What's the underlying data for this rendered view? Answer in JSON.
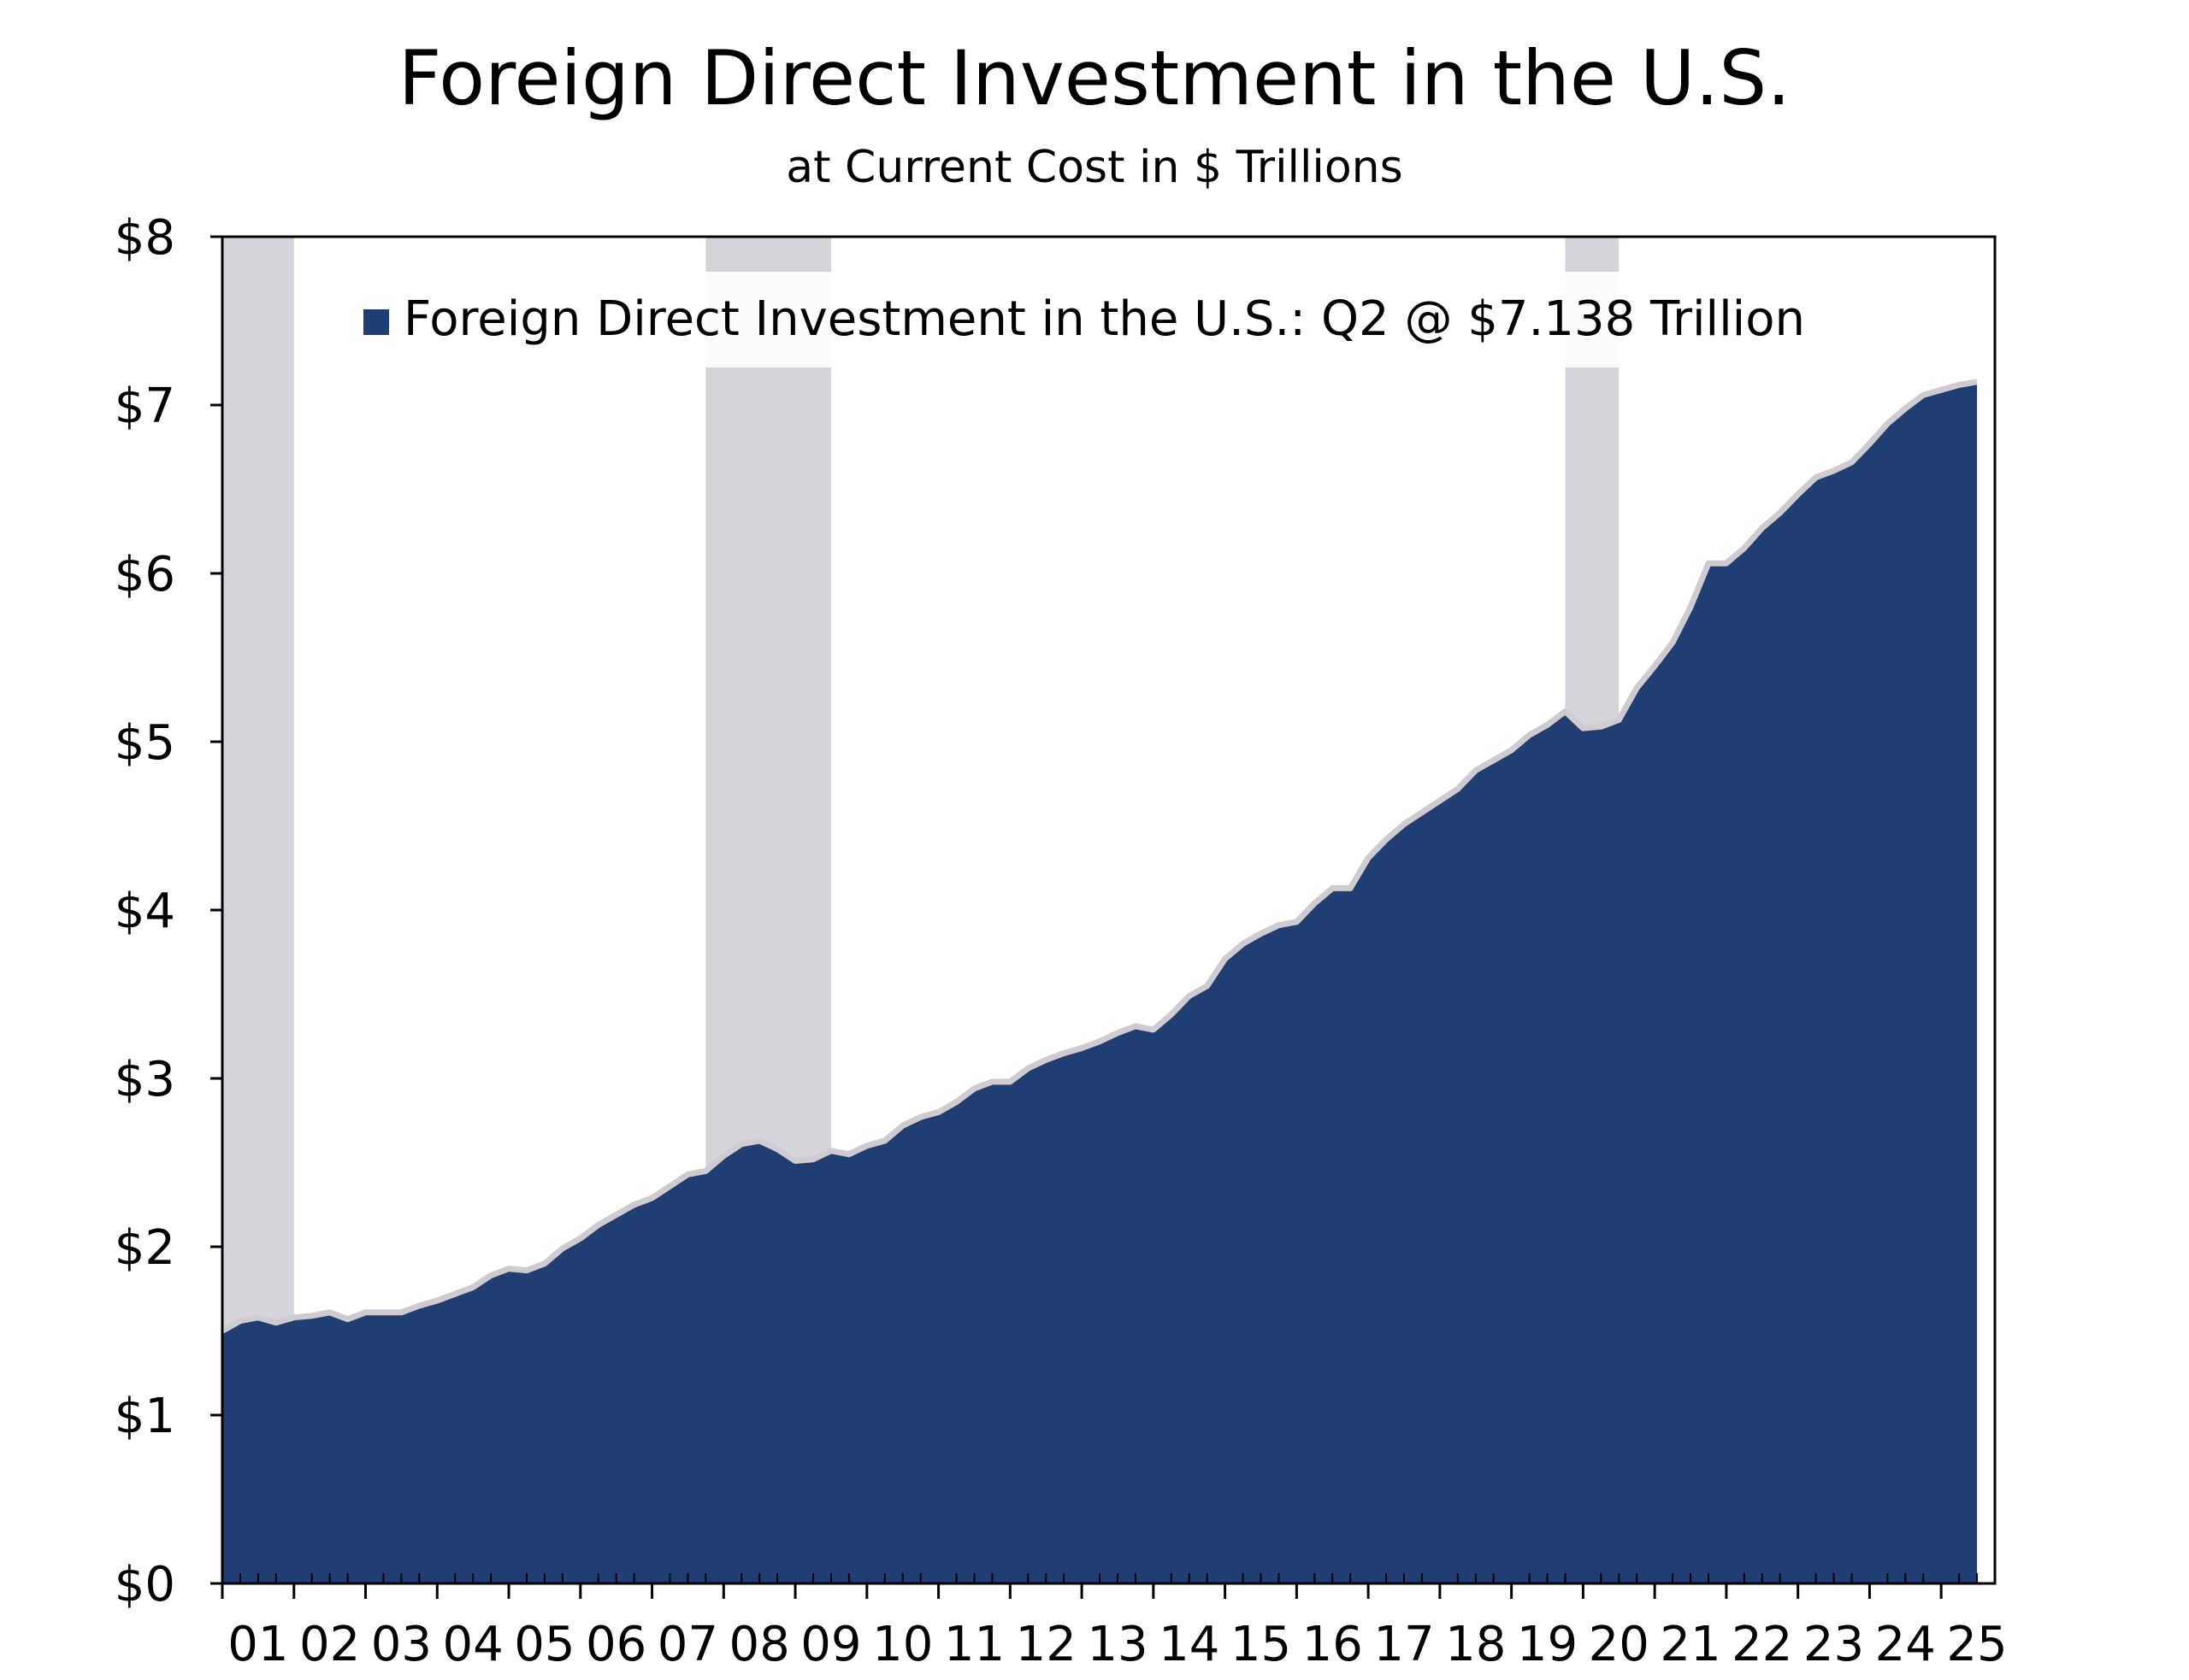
{
  "chart_data": {
    "type": "area",
    "title": "Foreign Direct Investment in the U.S.",
    "subtitle": "at Current Cost in $ Trillions",
    "xlabel": "",
    "ylabel": "",
    "legend": {
      "placement": "top",
      "label": "Foreign Direct Investment in the U.S.: Q2 @ $7.138 Trillion"
    },
    "colors": {
      "area": "#1f3e73",
      "outline": "#cfcbd3",
      "recession": "#d7d3da",
      "axis": "#000000"
    },
    "ylim": [
      0,
      8
    ],
    "yticks": [
      0,
      1,
      2,
      3,
      4,
      5,
      6,
      7,
      8
    ],
    "ytick_labels": [
      "$0",
      "$1",
      "$2",
      "$3",
      "$4",
      "$5",
      "$6",
      "$7",
      "$8"
    ],
    "xlim": [
      2001.0,
      2025.75
    ],
    "xtick_labels": [
      "01",
      "02",
      "03",
      "04",
      "05",
      "06",
      "07",
      "08",
      "09",
      "10",
      "11",
      "12",
      "13",
      "14",
      "15",
      "16",
      "17",
      "18",
      "19",
      "20",
      "21",
      "22",
      "23",
      "24",
      "25"
    ],
    "grid": false,
    "recessions": [
      {
        "start": 2001.0,
        "end": 2002.0
      },
      {
        "start": 2007.75,
        "end": 2009.5
      },
      {
        "start": 2019.75,
        "end": 2020.5
      }
    ],
    "series": [
      {
        "name": "Foreign Direct Investment in the U.S.",
        "x": [
          2001.0,
          2001.25,
          2001.5,
          2001.75,
          2002.0,
          2002.25,
          2002.5,
          2002.75,
          2003.0,
          2003.25,
          2003.5,
          2003.75,
          2004.0,
          2004.25,
          2004.5,
          2004.75,
          2005.0,
          2005.25,
          2005.5,
          2005.75,
          2006.0,
          2006.25,
          2006.5,
          2006.75,
          2007.0,
          2007.25,
          2007.5,
          2007.75,
          2008.0,
          2008.25,
          2008.5,
          2008.75,
          2009.0,
          2009.25,
          2009.5,
          2009.75,
          2010.0,
          2010.25,
          2010.5,
          2010.75,
          2011.0,
          2011.25,
          2011.5,
          2011.75,
          2012.0,
          2012.25,
          2012.5,
          2012.75,
          2013.0,
          2013.25,
          2013.5,
          2013.75,
          2014.0,
          2014.25,
          2014.5,
          2014.75,
          2015.0,
          2015.25,
          2015.5,
          2015.75,
          2016.0,
          2016.25,
          2016.5,
          2016.75,
          2017.0,
          2017.25,
          2017.5,
          2017.75,
          2018.0,
          2018.25,
          2018.5,
          2018.75,
          2019.0,
          2019.25,
          2019.5,
          2019.75,
          2020.0,
          2020.25,
          2020.5,
          2020.75,
          2021.0,
          2021.25,
          2021.5,
          2021.75,
          2022.0,
          2022.25,
          2022.5,
          2022.75,
          2023.0,
          2023.25,
          2023.5,
          2023.75,
          2024.0,
          2024.25,
          2024.5,
          2024.75,
          2025.0,
          2025.25,
          2025.5
        ],
        "values": [
          1.5,
          1.56,
          1.58,
          1.55,
          1.58,
          1.59,
          1.61,
          1.57,
          1.61,
          1.61,
          1.61,
          1.65,
          1.68,
          1.72,
          1.76,
          1.83,
          1.87,
          1.86,
          1.9,
          1.99,
          2.05,
          2.13,
          2.19,
          2.25,
          2.29,
          2.36,
          2.43,
          2.45,
          2.54,
          2.61,
          2.63,
          2.58,
          2.51,
          2.52,
          2.57,
          2.55,
          2.6,
          2.63,
          2.72,
          2.77,
          2.8,
          2.86,
          2.94,
          2.98,
          2.98,
          3.06,
          3.11,
          3.15,
          3.18,
          3.22,
          3.27,
          3.31,
          3.29,
          3.38,
          3.49,
          3.55,
          3.71,
          3.8,
          3.86,
          3.91,
          3.93,
          4.04,
          4.13,
          4.13,
          4.31,
          4.42,
          4.51,
          4.58,
          4.65,
          4.72,
          4.83,
          4.89,
          4.95,
          5.04,
          5.1,
          5.18,
          5.08,
          5.09,
          5.13,
          5.32,
          5.45,
          5.59,
          5.8,
          6.06,
          6.06,
          6.15,
          6.27,
          6.36,
          6.47,
          6.57,
          6.61,
          6.66,
          6.77,
          6.89,
          6.98,
          7.06,
          7.09,
          7.12,
          7.138
        ]
      }
    ]
  }
}
